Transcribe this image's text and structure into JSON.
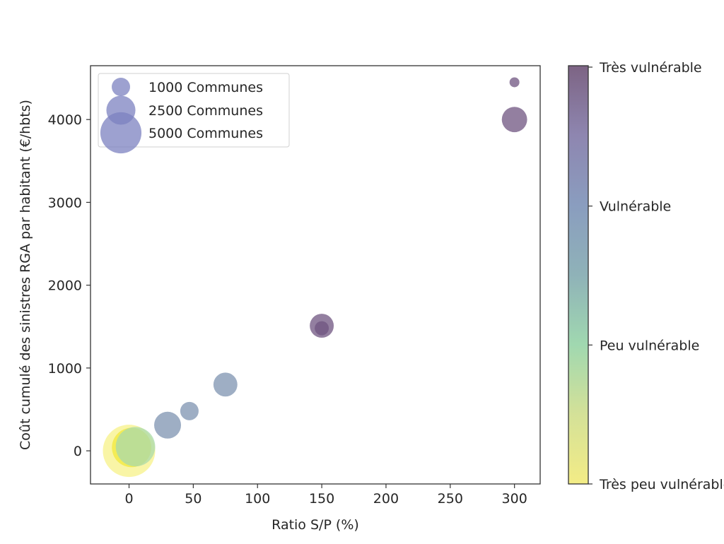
{
  "chart_data": {
    "type": "scatter",
    "title": "",
    "xlabel": "Ratio S/P (%)",
    "ylabel": "Coût cumulé des sinistres RGA par habitant (€/hbts)",
    "xlim": [
      -30,
      320
    ],
    "ylim": [
      -400,
      4650
    ],
    "xticks": [
      0,
      50,
      100,
      150,
      200,
      250,
      300
    ],
    "xtick_labels": [
      "0",
      "50",
      "100",
      "150",
      "200",
      "250",
      "300"
    ],
    "yticks": [
      0,
      1000,
      2000,
      3000,
      4000
    ],
    "ytick_labels": [
      "0",
      "1000",
      "2000",
      "3000",
      "4000"
    ],
    "grid": false,
    "size_encoding": "communes",
    "color_encoding": "vulnerability (0-3)",
    "points": [
      {
        "x": 0,
        "y": 0,
        "communes": 8100,
        "vulnerability": 0.0
      },
      {
        "x": 2,
        "y": 40,
        "communes": 4600,
        "vulnerability": 0.05
      },
      {
        "x": 5,
        "y": 50,
        "communes": 4600,
        "vulnerability": 0.9
      },
      {
        "x": 30,
        "y": 310,
        "communes": 2140,
        "vulnerability": 2.0
      },
      {
        "x": 47,
        "y": 480,
        "communes": 1000,
        "vulnerability": 2.0
      },
      {
        "x": 75,
        "y": 800,
        "communes": 1700,
        "vulnerability": 2.0
      },
      {
        "x": 150,
        "y": 1510,
        "communes": 1700,
        "vulnerability": 3.0
      },
      {
        "x": 150,
        "y": 1480,
        "communes": 590,
        "vulnerability": 3.0
      },
      {
        "x": 300,
        "y": 4000,
        "communes": 1900,
        "vulnerability": 3.0
      },
      {
        "x": 300,
        "y": 4450,
        "communes": 290,
        "vulnerability": 3.0
      }
    ],
    "legend": {
      "placement": "upper-left",
      "entries": [
        {
          "label": "1000 Communes",
          "communes": 1000
        },
        {
          "label": "2500 Communes",
          "communes": 2500
        },
        {
          "label": "5000 Communes",
          "communes": 5000
        }
      ],
      "color": "#7c82c0"
    },
    "colorbar": {
      "range": [
        0,
        3
      ],
      "ticks": [
        0,
        1,
        2,
        3
      ],
      "tick_labels": [
        "Très peu vulnérable",
        "Peu vulnérable",
        "Vulnérable",
        "Très vulnérable"
      ],
      "stops": [
        "#f3ec86",
        "#d4e198",
        "#a0d8b0",
        "#8fb2b8",
        "#8a9dbf",
        "#8e86b0",
        "#7d6484"
      ]
    }
  }
}
